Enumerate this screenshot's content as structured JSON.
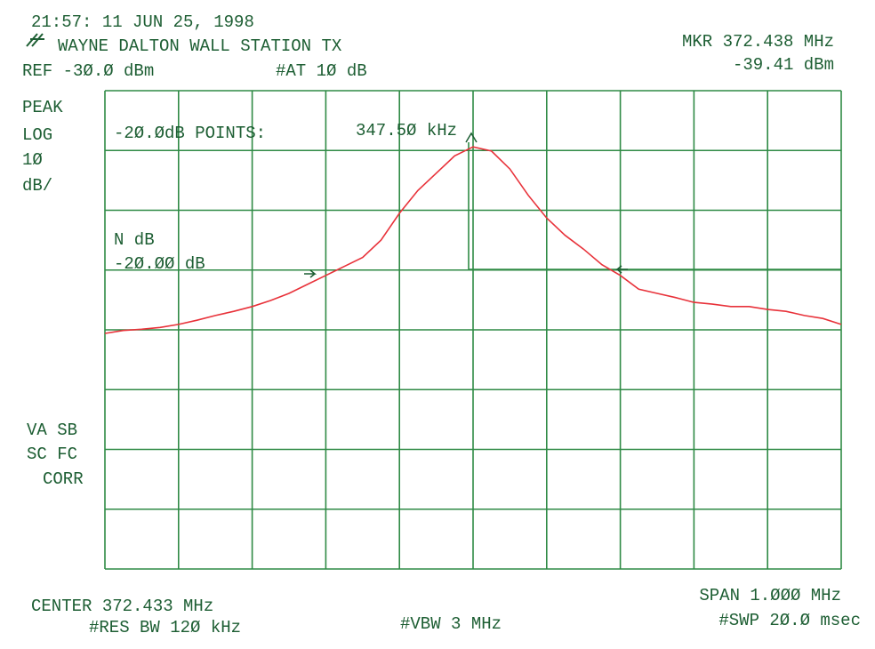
{
  "chart_data": {
    "type": "line",
    "timestamp": "21:57: 11 JUN 25, 1998",
    "title": "WAYNE DALTON WALL STATION TX",
    "ref_level": "REF -3Ø.Ø dBm",
    "attenuation": "#AT 1Ø dB",
    "marker_freq": "MKR 372.438 MHz",
    "marker_level": "-39.41 dBm",
    "side_labels": [
      "PEAK",
      "LOG",
      "1Ø",
      "dB/",
      "VA SB",
      "SC FC",
      "CORR"
    ],
    "points_label": "-2Ø.ØdB POINTS:",
    "points_value": "347.5Ø kHz",
    "ndb_label": "N dB",
    "ndb_value": "-2Ø.ØØ dB",
    "center": "CENTER 372.433 MHz",
    "span": "SPAN 1.ØØØ MHz",
    "res_bw": "#RES BW 12Ø kHz",
    "vbw": "#VBW 3 MHz",
    "sweep": "#SWP 2Ø.Ø msec",
    "x": [
      371.933,
      371.958,
      371.983,
      372.008,
      372.033,
      372.058,
      372.083,
      372.108,
      372.133,
      372.158,
      372.183,
      372.208,
      372.233,
      372.258,
      372.283,
      372.308,
      372.333,
      372.358,
      372.383,
      372.408,
      372.433,
      372.458,
      372.483,
      372.508,
      372.533,
      372.558,
      372.583,
      372.608,
      372.633,
      372.658,
      372.683,
      372.708,
      372.733,
      372.758,
      372.783,
      372.808,
      372.833,
      372.858,
      372.883,
      372.908,
      372.933
    ],
    "series": [
      {
        "color": "#e8323a",
        "values": [
          -70.6,
          -70.1,
          -69.9,
          -69.6,
          -69.1,
          -68.4,
          -67.6,
          -66.9,
          -66.1,
          -65.1,
          -63.9,
          -62.4,
          -60.9,
          -59.4,
          -57.9,
          -55.0,
          -50.5,
          -46.7,
          -43.8,
          -40.9,
          -39.4,
          -40.1,
          -43.1,
          -47.5,
          -51.3,
          -54.2,
          -56.5,
          -59.1,
          -60.9,
          -63.2,
          -63.9,
          -64.6,
          -65.4,
          -65.7,
          -66.1,
          -66.1,
          -66.6,
          -66.9,
          -67.6,
          -68.1,
          -69.1
        ]
      }
    ],
    "xlim": [
      371.933,
      372.933
    ],
    "ylim": [
      -110,
      -30
    ],
    "grid_color": "#2f8a45",
    "text_color": "#1d5e33"
  }
}
